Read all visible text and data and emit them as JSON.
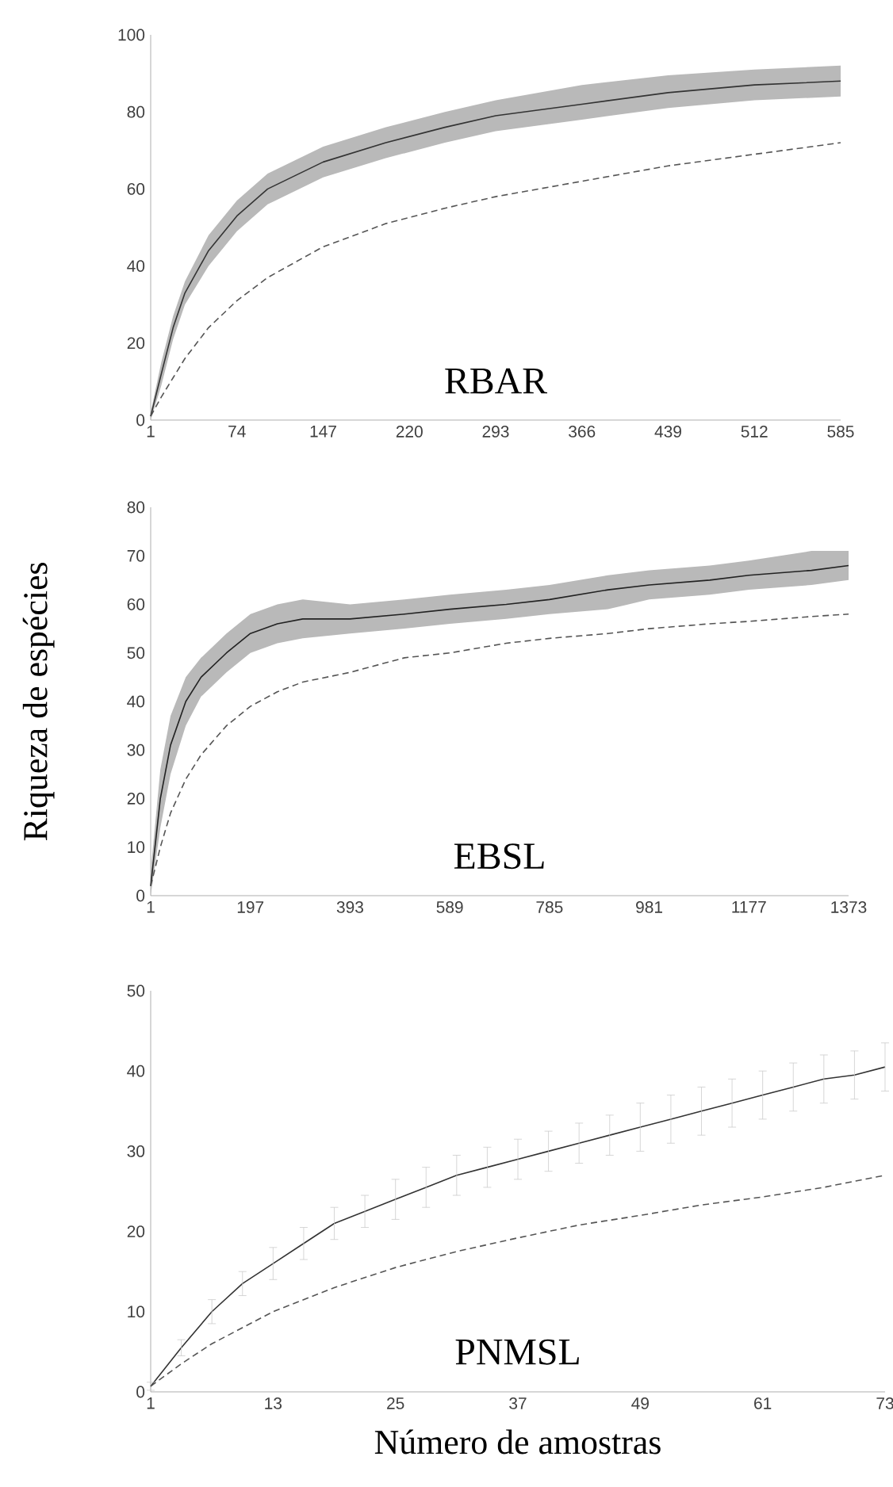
{
  "chart_data": [
    {
      "type": "line",
      "title": "RBAR",
      "xlim": [
        1,
        585
      ],
      "ylim": [
        0,
        100
      ],
      "xticks": [
        1,
        74,
        147,
        220,
        293,
        366,
        439,
        512,
        585
      ],
      "yticks": [
        0,
        20,
        40,
        60,
        80,
        100
      ],
      "series": [
        {
          "color": "#333333",
          "line_style": "solid",
          "x": [
            1,
            10,
            20,
            30,
            50,
            74,
            100,
            147,
            200,
            250,
            293,
            366,
            439,
            512,
            585
          ],
          "values": [
            1,
            12,
            24,
            33,
            44,
            53,
            60,
            67,
            72,
            76,
            79,
            82,
            85,
            87,
            88
          ],
          "lower": [
            0,
            9,
            21,
            30,
            40,
            49,
            56,
            63,
            68,
            72,
            75,
            78,
            81,
            83,
            84
          ],
          "upper": [
            2,
            15,
            27,
            36,
            48,
            57,
            64,
            71,
            76,
            80,
            83,
            87,
            89.5,
            91,
            92
          ]
        },
        {
          "color": "#555555",
          "line_style": "dashed",
          "x": [
            1,
            10,
            20,
            30,
            50,
            74,
            100,
            147,
            200,
            250,
            293,
            366,
            439,
            512,
            585
          ],
          "values": [
            1,
            6,
            11,
            16,
            24,
            31,
            37,
            45,
            51,
            55,
            58,
            62,
            66,
            69,
            72
          ]
        }
      ]
    },
    {
      "type": "line",
      "title": "EBSL",
      "ylabel": "Riqueza de espécies",
      "xlim": [
        1,
        1373
      ],
      "ylim": [
        0,
        80
      ],
      "xticks": [
        1,
        197,
        393,
        589,
        785,
        981,
        1177,
        1373
      ],
      "yticks": [
        0,
        10,
        20,
        30,
        40,
        50,
        60,
        70,
        80
      ],
      "series": [
        {
          "color": "#222222",
          "line_style": "solid",
          "x": [
            1,
            20,
            40,
            70,
            100,
            150,
            197,
            250,
            300,
            393,
            500,
            589,
            700,
            785,
            900,
            981,
            1100,
            1177,
            1300,
            1373
          ],
          "values": [
            2,
            20,
            31,
            40,
            45,
            50,
            54,
            56,
            57,
            57,
            58,
            59,
            60,
            61,
            63,
            64,
            65,
            66,
            67,
            68
          ],
          "lower": [
            0,
            14,
            25,
            35,
            41,
            46,
            50,
            52,
            53,
            54,
            55,
            56,
            57,
            58,
            59,
            61,
            62,
            63,
            64,
            65
          ],
          "upper": [
            5,
            26,
            37,
            45,
            49,
            54,
            58,
            60,
            61,
            60,
            61,
            62,
            63,
            64,
            66,
            67,
            68,
            69,
            71,
            71
          ]
        },
        {
          "color": "#555555",
          "line_style": "dashed",
          "x": [
            1,
            20,
            40,
            70,
            100,
            150,
            197,
            250,
            300,
            393,
            500,
            589,
            700,
            785,
            900,
            981,
            1100,
            1177,
            1300,
            1373
          ],
          "values": [
            2,
            10,
            17,
            24,
            29,
            35,
            39,
            42,
            44,
            46,
            49,
            50,
            52,
            53,
            54,
            55,
            56,
            56.5,
            57.5,
            58
          ]
        }
      ]
    },
    {
      "type": "line",
      "title": "PNMSL",
      "xlabel": "Número de amostras",
      "xlim": [
        1,
        73
      ],
      "ylim": [
        0,
        50
      ],
      "xticks": [
        1,
        13,
        25,
        37,
        49,
        61,
        73
      ],
      "yticks": [
        0,
        10,
        20,
        30,
        40,
        50
      ],
      "series": [
        {
          "color": "#333333",
          "line_style": "solid",
          "x": [
            1,
            4,
            7,
            10,
            13,
            16,
            19,
            22,
            25,
            28,
            31,
            34,
            37,
            40,
            43,
            46,
            49,
            52,
            55,
            58,
            61,
            64,
            67,
            70,
            73
          ],
          "values": [
            0.7,
            5.5,
            10,
            13.5,
            16,
            18.5,
            21,
            22.5,
            24,
            25.5,
            27,
            28,
            29,
            30,
            31,
            32,
            33,
            34,
            35,
            36,
            37,
            38,
            39,
            39.5,
            40.5
          ],
          "errors": [
            0.5,
            1,
            1.5,
            1.5,
            2,
            2,
            2,
            2,
            2.5,
            2.5,
            2.5,
            2.5,
            2.5,
            2.5,
            2.5,
            2.5,
            3,
            3,
            3,
            3,
            3,
            3,
            3,
            3,
            3
          ]
        },
        {
          "color": "#555555",
          "line_style": "dashed",
          "x": [
            1,
            4,
            7,
            10,
            13,
            19,
            25,
            31,
            37,
            43,
            49,
            55,
            61,
            67,
            73
          ],
          "values": [
            0.7,
            3.5,
            6,
            8,
            10,
            13,
            15.5,
            17.5,
            19.2,
            20.8,
            22,
            23.3,
            24.3,
            25.5,
            27
          ]
        }
      ]
    }
  ]
}
